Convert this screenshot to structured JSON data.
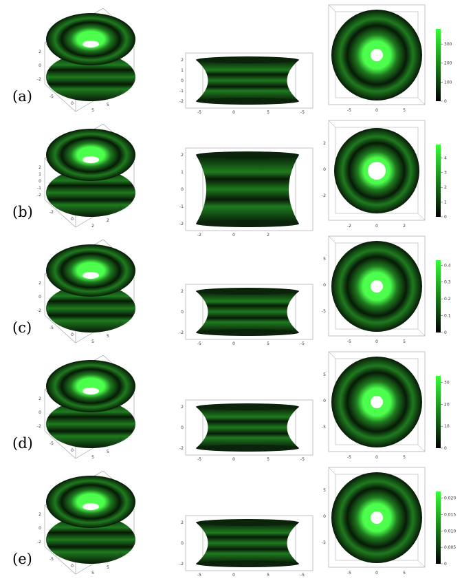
{
  "figure": {
    "rows": [
      {
        "label": "(a)",
        "colorbar_max": 380,
        "colorbar_ticks": [
          "300",
          "200",
          "100",
          "0"
        ],
        "tick_values": [
          300,
          200,
          100,
          0
        ],
        "side_zticks": [
          "2",
          "1",
          "0",
          "-1",
          "-2"
        ],
        "side_xticks": [
          "-5",
          "0",
          "5",
          "-5"
        ],
        "top_xticks": [
          "-5",
          "0",
          "5"
        ],
        "top_yticks": [],
        "persp_zticks": [
          "2",
          "0",
          "-2"
        ],
        "persp_xticks": [
          "-5",
          "0",
          "5"
        ],
        "persp_yticks": [
          "5",
          "0",
          "-5"
        ]
      },
      {
        "label": "(b)",
        "colorbar_max": 4.9,
        "colorbar_ticks": [
          "4",
          "3",
          "2",
          "1",
          "0"
        ],
        "tick_values": [
          4,
          3,
          2,
          1,
          0
        ],
        "side_zticks": [
          "2",
          "1",
          "0",
          "-1",
          "-2"
        ],
        "side_xticks": [
          "-2",
          "0",
          "2"
        ],
        "top_xticks": [
          "-2",
          "0",
          "2"
        ],
        "top_yticks": [
          "2",
          "0",
          "-2"
        ],
        "persp_zticks": [
          "2",
          "1",
          "0",
          "-1",
          "-2"
        ],
        "persp_xticks": [
          "-2",
          "0",
          "2"
        ],
        "persp_yticks": [
          "2",
          "0",
          "-2"
        ]
      },
      {
        "label": "(c)",
        "colorbar_max": 0.43,
        "colorbar_ticks": [
          "0.4",
          "0.3",
          "0.2",
          "0.1",
          "0"
        ],
        "tick_values": [
          0.4,
          0.3,
          0.2,
          0.1,
          0
        ],
        "side_zticks": [
          "2",
          "0",
          "-2"
        ],
        "side_xticks": [
          "-5",
          "0",
          "5",
          "-5"
        ],
        "top_xticks": [
          "-5",
          "0",
          "5"
        ],
        "top_yticks": [
          "5",
          "0",
          "-5"
        ],
        "persp_zticks": [
          "2",
          "0",
          "-2"
        ],
        "persp_xticks": [
          "-5",
          "0",
          "5"
        ],
        "persp_yticks": [
          "5",
          "0",
          "-5"
        ]
      },
      {
        "label": "(d)",
        "colorbar_max": 33,
        "colorbar_ticks": [
          "30",
          "20",
          "10",
          "0"
        ],
        "tick_values": [
          30,
          20,
          10,
          0
        ],
        "side_zticks": [
          "2",
          "0",
          "-2"
        ],
        "side_xticks": [
          "-5",
          "0",
          "5",
          "-5"
        ],
        "top_xticks": [
          "-5",
          "0",
          "5"
        ],
        "top_yticks": [
          "5",
          "0",
          "-5"
        ],
        "persp_zticks": [
          "2",
          "0",
          "-2"
        ],
        "persp_xticks": [
          "-5",
          "0",
          "5"
        ],
        "persp_yticks": [
          "5",
          "0",
          "-5"
        ]
      },
      {
        "label": "(e)",
        "colorbar_max": 0.022,
        "colorbar_ticks": [
          "0.020",
          "0.015",
          "0.010",
          "0.005",
          "0"
        ],
        "tick_values": [
          0.02,
          0.015,
          0.01,
          0.005,
          0
        ],
        "side_zticks": [
          "2",
          "0",
          "-2"
        ],
        "side_xticks": [
          "-5",
          "0",
          "5",
          "-5"
        ],
        "top_xticks": [
          "-5",
          "0",
          "5"
        ],
        "top_yticks": [
          "5",
          "0",
          "-5"
        ],
        "persp_zticks": [
          "2",
          "0",
          "-2"
        ],
        "persp_xticks": [
          "-5",
          "0",
          "5"
        ],
        "persp_yticks": [
          "5",
          "0",
          "-5"
        ]
      }
    ]
  },
  "colors": {
    "surface_bright": "#4cff4c",
    "surface_mid": "#1f7a1f",
    "surface_dark": "#071a07",
    "frame": "#999999",
    "colorbar_top": "#33ff33",
    "colorbar_bottom": "#000000"
  }
}
